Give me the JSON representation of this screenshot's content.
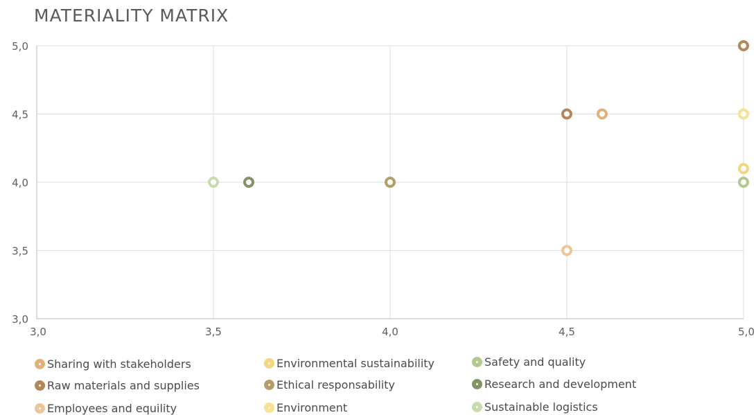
{
  "chart_data": {
    "type": "scatter",
    "title": "MATERIALITY MATRIX",
    "xlabel": "",
    "ylabel": "",
    "xlim": [
      3.0,
      5.0
    ],
    "ylim": [
      3.0,
      5.0
    ],
    "x_ticks": [
      "3,0",
      "3,5",
      "4,0",
      "4,5",
      "5,0"
    ],
    "y_ticks": [
      "3,0",
      "3,5",
      "4,0",
      "4,5",
      "5,0"
    ],
    "grid": true,
    "legend_position": "bottom",
    "series": [
      {
        "name": "Sharing with stakeholders",
        "color": "#e0b27a",
        "points": [
          [
            4.6,
            4.5
          ]
        ]
      },
      {
        "name": "Environmental sustainability",
        "color": "#f2d77e",
        "points": [
          [
            5.0,
            4.1
          ]
        ]
      },
      {
        "name": "Safety and quality",
        "color": "#b1c98f",
        "points": [
          [
            5.0,
            4.0
          ]
        ]
      },
      {
        "name": "Raw materials and supplies",
        "color": "#b3875a",
        "points": [
          [
            4.5,
            4.5
          ],
          [
            5.0,
            5.0
          ]
        ]
      },
      {
        "name": "Ethical responsability",
        "color": "#b49e68",
        "points": [
          [
            4.0,
            4.0
          ]
        ]
      },
      {
        "name": "Research and development",
        "color": "#839366",
        "points": [
          [
            3.6,
            4.0
          ]
        ]
      },
      {
        "name": "Employees and equility",
        "color": "#efc49a",
        "points": [
          [
            4.5,
            3.5
          ]
        ]
      },
      {
        "name": "Environment",
        "color": "#f7e291",
        "points": [
          [
            5.0,
            4.5
          ]
        ]
      },
      {
        "name": "Sustainable logistics",
        "color": "#c6dcac",
        "points": [
          [
            3.5,
            4.0
          ]
        ]
      }
    ]
  }
}
